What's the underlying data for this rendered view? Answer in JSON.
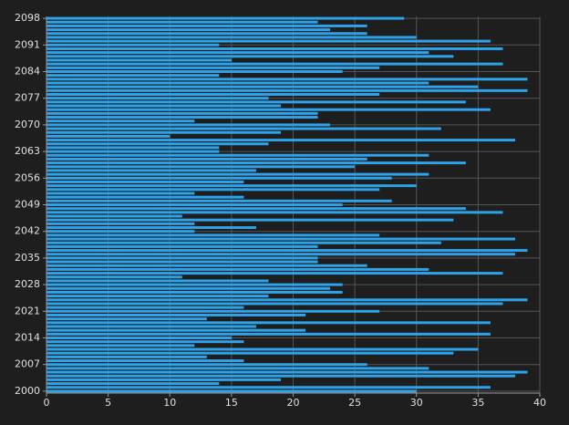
{
  "chart_data": {
    "type": "bar",
    "orientation": "horizontal",
    "color": "#2ea3ea",
    "categories": [
      "2000",
      null,
      null,
      null,
      null,
      null,
      null,
      "2007",
      null,
      null,
      null,
      null,
      null,
      null,
      "2014",
      null,
      null,
      null,
      null,
      null,
      null,
      "2021",
      null,
      null,
      null,
      null,
      null,
      null,
      "2028",
      null,
      null,
      null,
      null,
      null,
      null,
      "2035",
      null,
      null,
      null,
      null,
      null,
      null,
      "2042",
      null,
      null,
      null,
      null,
      null,
      null,
      "2049",
      null,
      null,
      null,
      null,
      null,
      null,
      "2056",
      null,
      null,
      null,
      null,
      null,
      null,
      "2063",
      null,
      null,
      null,
      null,
      null,
      null,
      "2070",
      null,
      null,
      null,
      null,
      null,
      null,
      "2077",
      null,
      null,
      null,
      null,
      null,
      null,
      "2084",
      null,
      null,
      null,
      null,
      null,
      null,
      "2091",
      null,
      null,
      null,
      null,
      null,
      null,
      "2098"
    ],
    "values": [
      30,
      36,
      14,
      19,
      38,
      39,
      31,
      26,
      16,
      13,
      33,
      35,
      12,
      16,
      15,
      36,
      21,
      17,
      36,
      13,
      21,
      27,
      16,
      37,
      39,
      18,
      24,
      23,
      24,
      18,
      11,
      37,
      31,
      26,
      22,
      22,
      38,
      39,
      22,
      32,
      38,
      27,
      12,
      17,
      12,
      33,
      11,
      37,
      34,
      24,
      28,
      16,
      12,
      27,
      30,
      16,
      28,
      31,
      17,
      25,
      34,
      26,
      31,
      14,
      14,
      18,
      38,
      10,
      19,
      32,
      23,
      12,
      22,
      22,
      36,
      19,
      34,
      18,
      27,
      39,
      35,
      31,
      39,
      14,
      24,
      27,
      37,
      15,
      33,
      31,
      37,
      14,
      36,
      30,
      26,
      23,
      26,
      22,
      29
    ],
    "xlim": [
      0,
      40
    ],
    "xticks": [
      0,
      5,
      10,
      15,
      20,
      25,
      30,
      35,
      40
    ],
    "grid": true
  }
}
